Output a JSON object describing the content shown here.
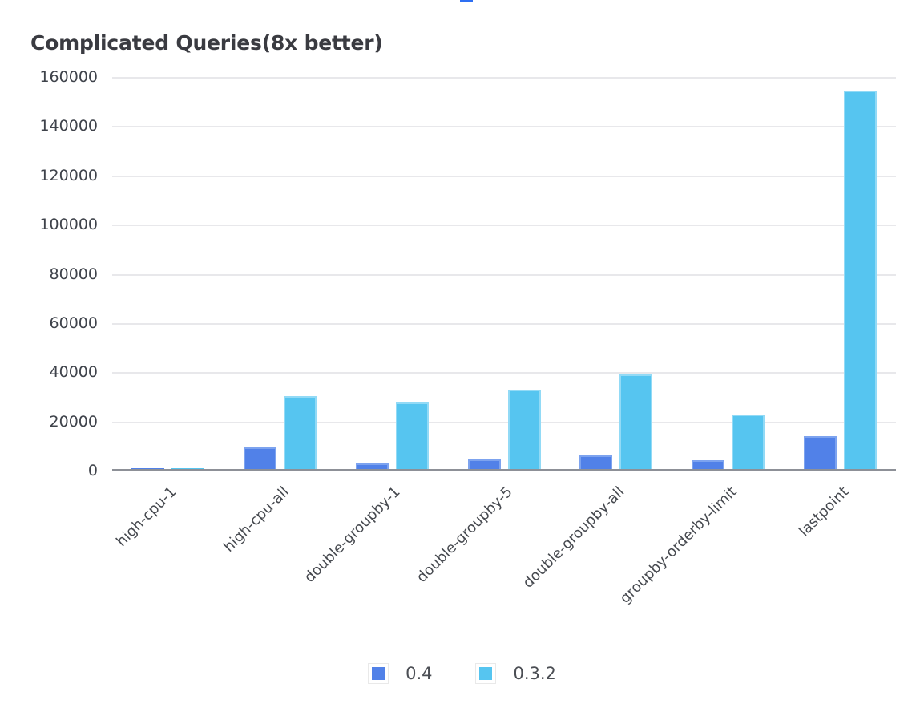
{
  "page": {
    "background": "#ffffff",
    "top_accent_color": "#2e6ff2"
  },
  "title": "Complicated Queries(8x better)",
  "chart_data": {
    "type": "bar",
    "title": "Complicated Queries(8x better)",
    "categories": [
      "high-cpu-1",
      "high-cpu-all",
      "double-groupby-1",
      "double-groupby-5",
      "double-groupby-all",
      "groupby-orderby-limit",
      "lastpoint"
    ],
    "series": [
      {
        "name": "0.4",
        "color": "#5181e8",
        "border_color": "#7da3ef",
        "values": [
          600,
          9200,
          2700,
          4100,
          5800,
          3900,
          13800
        ]
      },
      {
        "name": "0.3.2",
        "color": "#56c5f0",
        "border_color": "#92daf6",
        "values": [
          700,
          30000,
          27500,
          32500,
          38800,
          22500,
          154000
        ]
      }
    ],
    "xlabel": "",
    "ylabel": "",
    "ylim": [
      0,
      160000
    ],
    "ytick_interval": 20000,
    "ytick_labels": [
      "160000",
      "140000",
      "120000",
      "100000",
      "80000",
      "60000",
      "40000",
      "20000",
      "0"
    ],
    "grid": "horizontal",
    "legend_position": "bottom",
    "colors": {
      "gridline": "#e8e8eb",
      "axis_line": "#8d9097",
      "tick_label": "#3f434b",
      "category_label": "#46494f",
      "legend_label": "#4b4e54",
      "title": "#3a3b41"
    }
  }
}
